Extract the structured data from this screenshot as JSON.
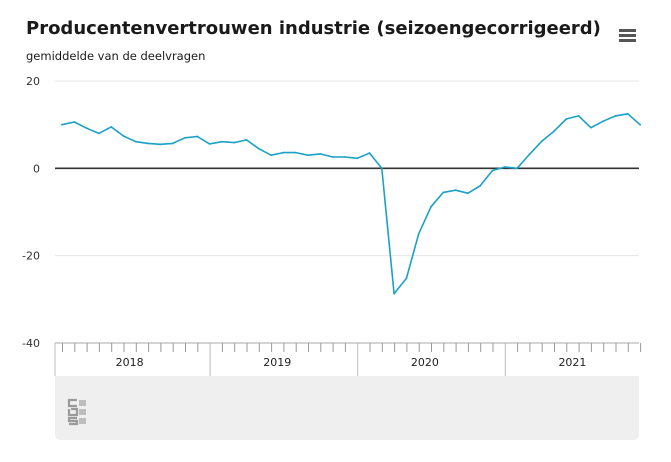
{
  "header": {
    "title": "Producentenvertrouwen industrie (seizoengecorrigeerd)",
    "subtitle": "gemiddelde van de deelvragen",
    "menu_icon": "hamburger-menu-icon"
  },
  "footer": {
    "logo_icon": "cbs-logo-icon"
  },
  "colors": {
    "line": "#1ba1c6",
    "zero_line": "#333333",
    "grid": "#e6e6e6",
    "footer_bg": "#efefef"
  },
  "chart_data": {
    "type": "line",
    "title": "Producentenvertrouwen industrie (seizoengecorrigeerd)",
    "subtitle": "gemiddelde van de deelvragen",
    "ylim": [
      -40,
      20
    ],
    "yticks": [
      20,
      0,
      -20,
      -40
    ],
    "grid": true,
    "x_start": "2018-01",
    "year_labels": [
      "2018",
      "2019",
      "2020",
      "2021"
    ],
    "x": [
      "2018-01",
      "2018-02",
      "2018-03",
      "2018-04",
      "2018-05",
      "2018-06",
      "2018-07",
      "2018-08",
      "2018-09",
      "2018-10",
      "2018-11",
      "2018-12",
      "2019-01",
      "2019-02",
      "2019-03",
      "2019-04",
      "2019-05",
      "2019-06",
      "2019-07",
      "2019-08",
      "2019-09",
      "2019-10",
      "2019-11",
      "2019-12",
      "2020-01",
      "2020-02",
      "2020-03",
      "2020-04",
      "2020-05",
      "2020-06",
      "2020-07",
      "2020-08",
      "2020-09",
      "2020-10",
      "2020-11",
      "2020-12",
      "2021-01",
      "2021-02",
      "2021-03",
      "2021-04",
      "2021-05",
      "2021-06",
      "2021-07",
      "2021-08",
      "2021-09",
      "2021-10",
      "2021-11",
      "2021-12"
    ],
    "values": [
      10.0,
      10.6,
      9.2,
      8.0,
      9.5,
      7.4,
      6.1,
      5.7,
      5.5,
      5.7,
      7.0,
      7.3,
      5.6,
      6.1,
      5.9,
      6.5,
      4.5,
      3.0,
      3.6,
      3.6,
      3.0,
      3.3,
      2.6,
      2.6,
      2.3,
      3.5,
      0.0,
      -28.7,
      -25.2,
      -15.0,
      -8.8,
      -5.5,
      -5.0,
      -5.7,
      -4.0,
      -0.5,
      0.3,
      0.0,
      3.2,
      6.2,
      8.5,
      11.3,
      12.0,
      9.3,
      10.8,
      12.0,
      12.5,
      10.0
    ]
  }
}
